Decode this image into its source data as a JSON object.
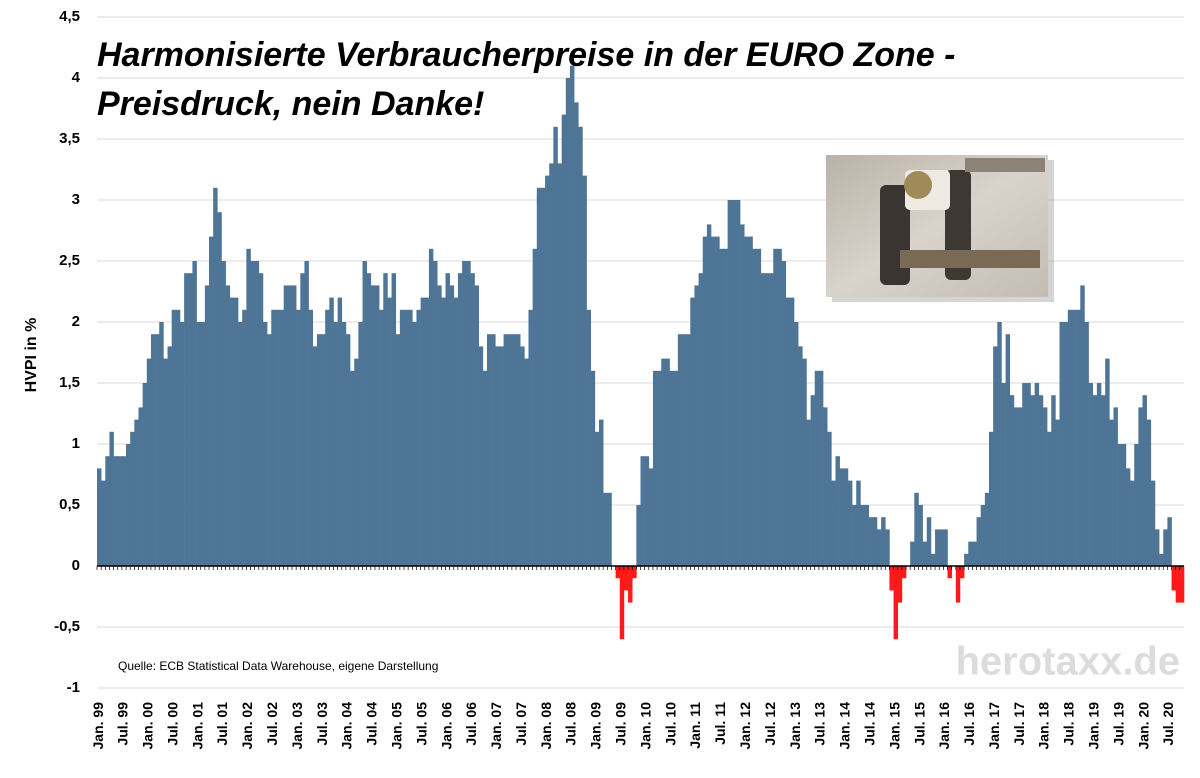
{
  "chart_data": {
    "type": "bar",
    "title": [
      "Harmonisierte Verbraucherpreise in der EURO Zone -",
      "Preisdruck, nein Danke!"
    ],
    "y_label": "HVPI in %",
    "source": "Quelle: ECB Statistical Data Warehouse, eigene Darstellung",
    "watermark": "herotaxx.de",
    "color": "#4e7596",
    "negative_color": "#ff1a1a",
    "grid": true,
    "ylim": [
      -1,
      4.5
    ],
    "yticks": [
      {
        "value": 4.5,
        "label": "4,5"
      },
      4,
      {
        "value": 3.5,
        "label": "3,5"
      },
      3,
      {
        "value": 2.5,
        "label": "2,5"
      },
      2,
      {
        "value": 1.5,
        "label": "1,5"
      },
      1,
      {
        "value": 0.5,
        "label": "0,5"
      },
      0,
      {
        "value": -0.5,
        "label": "-0,5"
      },
      -1
    ],
    "categories": [
      "Jan. 99",
      null,
      null,
      null,
      null,
      null,
      "Jul. 99",
      null,
      null,
      null,
      null,
      null,
      "Jan. 00",
      null,
      null,
      null,
      null,
      null,
      "Jul. 00",
      null,
      null,
      null,
      null,
      null,
      "Jan. 01",
      null,
      null,
      null,
      null,
      null,
      "Jul. 01",
      null,
      null,
      null,
      null,
      null,
      "Jan. 02",
      null,
      null,
      null,
      null,
      null,
      "Jul. 02",
      null,
      null,
      null,
      null,
      null,
      "Jan. 03",
      null,
      null,
      null,
      null,
      null,
      "Jul. 03",
      null,
      null,
      null,
      null,
      null,
      "Jan. 04",
      null,
      null,
      null,
      null,
      null,
      "Jul. 04",
      null,
      null,
      null,
      null,
      null,
      "Jan. 05",
      null,
      null,
      null,
      null,
      null,
      "Jul. 05",
      null,
      null,
      null,
      null,
      null,
      "Jan. 06",
      null,
      null,
      null,
      null,
      null,
      "Jul. 06",
      null,
      null,
      null,
      null,
      null,
      "Jan. 07",
      null,
      null,
      null,
      null,
      null,
      "Jul. 07",
      null,
      null,
      null,
      null,
      null,
      "Jan. 08",
      null,
      null,
      null,
      null,
      null,
      "Jul. 08",
      null,
      null,
      null,
      null,
      null,
      "Jan. 09",
      null,
      null,
      null,
      null,
      null,
      "Jul. 09",
      null,
      null,
      null,
      null,
      null,
      "Jan. 10",
      null,
      null,
      null,
      null,
      null,
      "Jul. 10",
      null,
      null,
      null,
      null,
      null,
      "Jan. 11",
      null,
      null,
      null,
      null,
      null,
      "Jul. 11",
      null,
      null,
      null,
      null,
      null,
      "Jan. 12",
      null,
      null,
      null,
      null,
      null,
      "Jul. 12",
      null,
      null,
      null,
      null,
      null,
      "Jan. 13",
      null,
      null,
      null,
      null,
      null,
      "Jul. 13",
      null,
      null,
      null,
      null,
      null,
      "Jan. 14",
      null,
      null,
      null,
      null,
      null,
      "Jul. 14",
      null,
      null,
      null,
      null,
      null,
      "Jan. 15",
      null,
      null,
      null,
      null,
      null,
      "Jul. 15",
      null,
      null,
      null,
      null,
      null,
      "Jan. 16",
      null,
      null,
      null,
      null,
      null,
      "Jul. 16",
      null,
      null,
      null,
      null,
      null,
      "Jan. 17",
      null,
      null,
      null,
      null,
      null,
      "Jul. 17",
      null,
      null,
      null,
      null,
      null,
      "Jan. 18",
      null,
      null,
      null,
      null,
      null,
      "Jul. 18",
      null,
      null,
      null,
      null,
      null,
      "Jan. 19",
      null,
      null,
      null,
      null,
      null,
      "Jul. 19",
      null,
      null,
      null,
      null,
      null,
      "Jan. 20",
      null,
      null,
      null,
      null,
      null,
      "Jul. 20",
      null,
      null,
      null
    ],
    "values": [
      0.8,
      0.7,
      0.9,
      1.1,
      0.9,
      0.9,
      0.9,
      1.0,
      1.1,
      1.2,
      1.3,
      1.5,
      1.7,
      1.9,
      1.9,
      2.0,
      1.7,
      1.8,
      2.1,
      2.1,
      2.0,
      2.4,
      2.4,
      2.5,
      2.0,
      2.0,
      2.3,
      2.7,
      3.1,
      2.9,
      2.5,
      2.3,
      2.2,
      2.2,
      2.0,
      2.1,
      2.6,
      2.5,
      2.5,
      2.4,
      2.0,
      1.9,
      2.1,
      2.1,
      2.1,
      2.3,
      2.3,
      2.3,
      2.1,
      2.4,
      2.5,
      2.1,
      1.8,
      1.9,
      1.9,
      2.1,
      2.2,
      2.0,
      2.2,
      2.0,
      1.9,
      1.6,
      1.7,
      2.0,
      2.5,
      2.4,
      2.3,
      2.3,
      2.1,
      2.4,
      2.2,
      2.4,
      1.9,
      2.1,
      2.1,
      2.1,
      2.0,
      2.1,
      2.2,
      2.2,
      2.6,
      2.5,
      2.3,
      2.2,
      2.4,
      2.3,
      2.2,
      2.4,
      2.5,
      2.5,
      2.4,
      2.3,
      1.8,
      1.6,
      1.9,
      1.9,
      1.8,
      1.8,
      1.9,
      1.9,
      1.9,
      1.9,
      1.8,
      1.7,
      2.1,
      2.6,
      3.1,
      3.1,
      3.2,
      3.3,
      3.6,
      3.3,
      3.7,
      4.0,
      4.1,
      3.8,
      3.6,
      3.2,
      2.1,
      1.6,
      1.1,
      1.2,
      0.6,
      0.6,
      0.0,
      -0.1,
      -0.6,
      -0.2,
      -0.3,
      -0.1,
      0.5,
      0.9,
      0.9,
      0.8,
      1.6,
      1.6,
      1.7,
      1.7,
      1.6,
      1.6,
      1.9,
      1.9,
      1.9,
      2.2,
      2.3,
      2.4,
      2.7,
      2.8,
      2.7,
      2.7,
      2.6,
      2.6,
      3.0,
      3.0,
      3.0,
      2.8,
      2.7,
      2.7,
      2.6,
      2.6,
      2.4,
      2.4,
      2.4,
      2.6,
      2.6,
      2.5,
      2.2,
      2.2,
      2.0,
      1.8,
      1.7,
      1.2,
      1.4,
      1.6,
      1.6,
      1.3,
      1.1,
      0.7,
      0.9,
      0.8,
      0.8,
      0.7,
      0.5,
      0.7,
      0.5,
      0.5,
      0.4,
      0.4,
      0.3,
      0.4,
      0.3,
      -0.2,
      -0.6,
      -0.3,
      -0.1,
      0.0,
      0.2,
      0.6,
      0.5,
      0.2,
      0.4,
      0.1,
      0.3,
      0.3,
      0.3,
      -0.1,
      0.0,
      -0.3,
      -0.1,
      0.1,
      0.2,
      0.2,
      0.4,
      0.5,
      0.6,
      1.1,
      1.8,
      2.0,
      1.5,
      1.9,
      1.4,
      1.3,
      1.3,
      1.5,
      1.5,
      1.4,
      1.5,
      1.4,
      1.3,
      1.1,
      1.4,
      1.2,
      2.0,
      2.0,
      2.1,
      2.1,
      2.1,
      2.3,
      2.0,
      1.5,
      1.4,
      1.5,
      1.4,
      1.7,
      1.2,
      1.3,
      1.0,
      1.0,
      0.8,
      0.7,
      1.0,
      1.3,
      1.4,
      1.2,
      0.7,
      0.3,
      0.1,
      0.3,
      0.4,
      -0.2,
      -0.3,
      -0.3
    ]
  }
}
